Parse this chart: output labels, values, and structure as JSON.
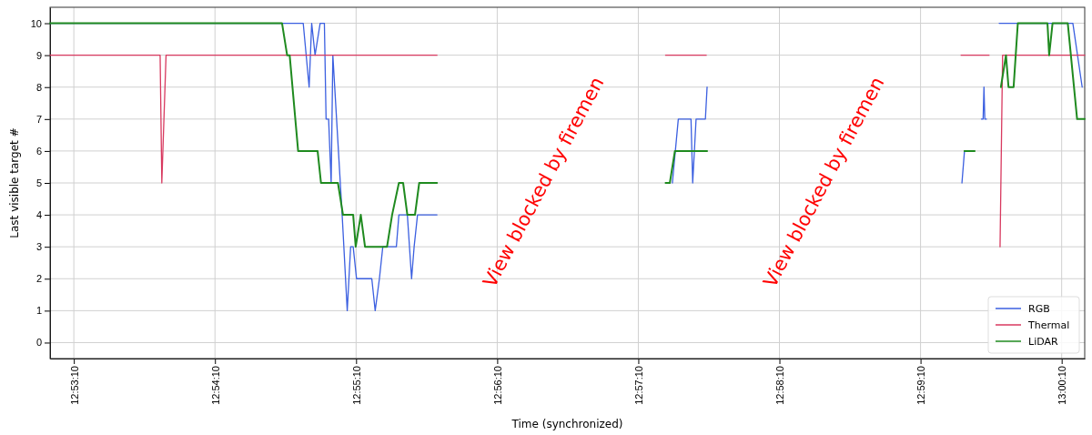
{
  "chart_data": {
    "type": "line",
    "xlabel": "Time (synchronized)",
    "ylabel": "Last visible target #",
    "xlim": [
      12.8833,
      13.0055
    ],
    "ylim": [
      -0.5,
      10.5
    ],
    "xticks": [
      {
        "value": 12.886111,
        "label": "12:53:10"
      },
      {
        "value": 12.902778,
        "label": "12:54:10"
      },
      {
        "value": 12.919444,
        "label": "12:55:10"
      },
      {
        "value": 12.936111,
        "label": "12:56:10"
      },
      {
        "value": 12.952778,
        "label": "12:57:10"
      },
      {
        "value": 12.969444,
        "label": "12:58:10"
      },
      {
        "value": 12.986111,
        "label": "12:59:10"
      },
      {
        "value": 13.002778,
        "label": "13:00:10"
      }
    ],
    "yticks": [
      0,
      1,
      2,
      3,
      4,
      5,
      6,
      7,
      8,
      9,
      10
    ],
    "grid": true,
    "legend": "bottom right",
    "annotations": [
      "View blocked by firemen",
      "View blocked by firemen"
    ],
    "series": [
      {
        "name": "RGB",
        "color": "#3b5fe0",
        "x": [
          12.8833,
          12.9132,
          12.9139,
          12.9142,
          12.9146,
          12.9152,
          12.9157,
          12.9159,
          12.9162,
          12.9165,
          12.9167,
          12.9178,
          12.9184,
          12.9188,
          12.9191,
          12.9195,
          12.9213,
          12.9217,
          12.9222,
          12.9226,
          12.9242,
          12.9245,
          12.9255,
          12.926,
          12.9263,
          12.9267,
          12.929,
          12.94,
          12.9568,
          12.9575,
          12.959,
          12.9592,
          12.9596,
          12.9607,
          12.9609,
          12.975,
          12.991,
          12.9913,
          12.9925,
          12.9929,
          12.9933,
          12.9935,
          12.9936,
          12.9937,
          12.9939,
          12.9945,
          12.9954,
          13.0041,
          13.0052
        ],
        "values": [
          10,
          10,
          8,
          10,
          9,
          10,
          10,
          7,
          7,
          5,
          9,
          4,
          1,
          3,
          3,
          2,
          2,
          1,
          2,
          3,
          3,
          4,
          4,
          2,
          3,
          4,
          4,
          null,
          5,
          7,
          7,
          5,
          7,
          7,
          8,
          null,
          5,
          6,
          null,
          null,
          7,
          7,
          8,
          7,
          7,
          null,
          10,
          10,
          8
        ]
      },
      {
        "name": "Thermal",
        "color": "#d8395f",
        "x": [
          12.8833,
          12.8963,
          12.8965,
          12.897,
          12.929,
          12.94,
          12.956,
          12.9608,
          12.975,
          12.9909,
          12.9942,
          12.995,
          12.9955,
          12.9958,
          13.0055
        ],
        "values": [
          9,
          9,
          5,
          9,
          9,
          null,
          9,
          9,
          null,
          9,
          9,
          null,
          3,
          9,
          9
        ]
      },
      {
        "name": "LiDAR",
        "color": "#1f8a1f",
        "x": [
          12.8833,
          12.9107,
          12.9113,
          12.9116,
          12.9126,
          12.9149,
          12.9153,
          12.9173,
          12.9179,
          12.9191,
          12.9194,
          12.92,
          12.9205,
          12.9231,
          12.9237,
          12.9245,
          12.925,
          12.9255,
          12.9264,
          12.9269,
          12.929,
          12.94,
          12.956,
          12.9565,
          12.9571,
          12.9609,
          12.975,
          12.9913,
          12.9925,
          12.994,
          12.9956,
          12.9962,
          12.9965,
          12.9971,
          12.9976,
          13.0011,
          13.0013,
          13.0017,
          13.0035,
          13.0046,
          13.0055
        ],
        "values": [
          10,
          10,
          9,
          9,
          6,
          6,
          5,
          5,
          4,
          4,
          3,
          4,
          3,
          3,
          4,
          5,
          5,
          4,
          4,
          5,
          5,
          null,
          5,
          5,
          6,
          6,
          null,
          6,
          6,
          null,
          8,
          9,
          8,
          8,
          10,
          10,
          9,
          10,
          10,
          7,
          7
        ]
      }
    ]
  }
}
